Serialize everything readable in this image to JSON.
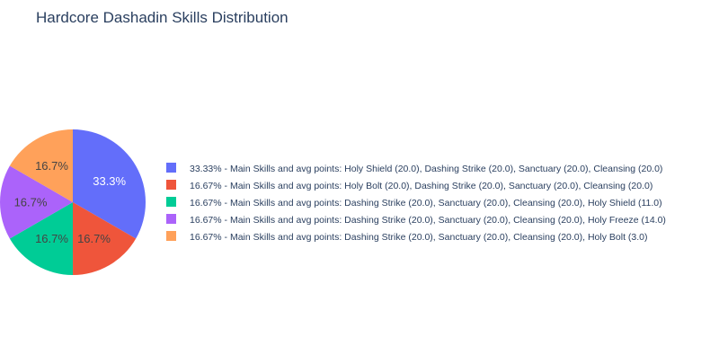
{
  "chart_data": {
    "type": "pie",
    "title": "Hardcore Dashadin Skills Distribution",
    "slices": [
      {
        "label": "33.33% - Main Skills and avg points: Holy Shield (20.0), Dashing Strike (20.0), Sanctuary (20.0), Cleansing (20.0)",
        "value": 33.33,
        "text": "33.3%",
        "color": "#636efa",
        "text_color": "#ffffff"
      },
      {
        "label": "16.67% - Main Skills and avg points: Holy Bolt (20.0), Dashing Strike (20.0), Sanctuary (20.0), Cleansing (20.0)",
        "value": 16.67,
        "text": "16.7%",
        "color": "#ef553b",
        "text_color": "#444444"
      },
      {
        "label": "16.67% - Main Skills and avg points: Dashing Strike (20.0), Sanctuary (20.0), Cleansing (20.0), Holy Shield (11.0)",
        "value": 16.67,
        "text": "16.7%",
        "color": "#00cc96",
        "text_color": "#444444"
      },
      {
        "label": "16.67% - Main Skills and avg points: Dashing Strike (20.0), Sanctuary (20.0), Cleansing (20.0), Holy Freeze (14.0)",
        "value": 16.67,
        "text": "16.7%",
        "color": "#ab63fa",
        "text_color": "#444444"
      },
      {
        "label": "16.67% - Main Skills and avg points: Dashing Strike (20.0), Sanctuary (20.0), Cleansing (20.0), Holy Bolt (3.0)",
        "value": 16.67,
        "text": "16.7%",
        "color": "#ffa15a",
        "text_color": "#444444"
      }
    ],
    "legend_position": "right",
    "direction": "clockwise",
    "start": "top"
  }
}
